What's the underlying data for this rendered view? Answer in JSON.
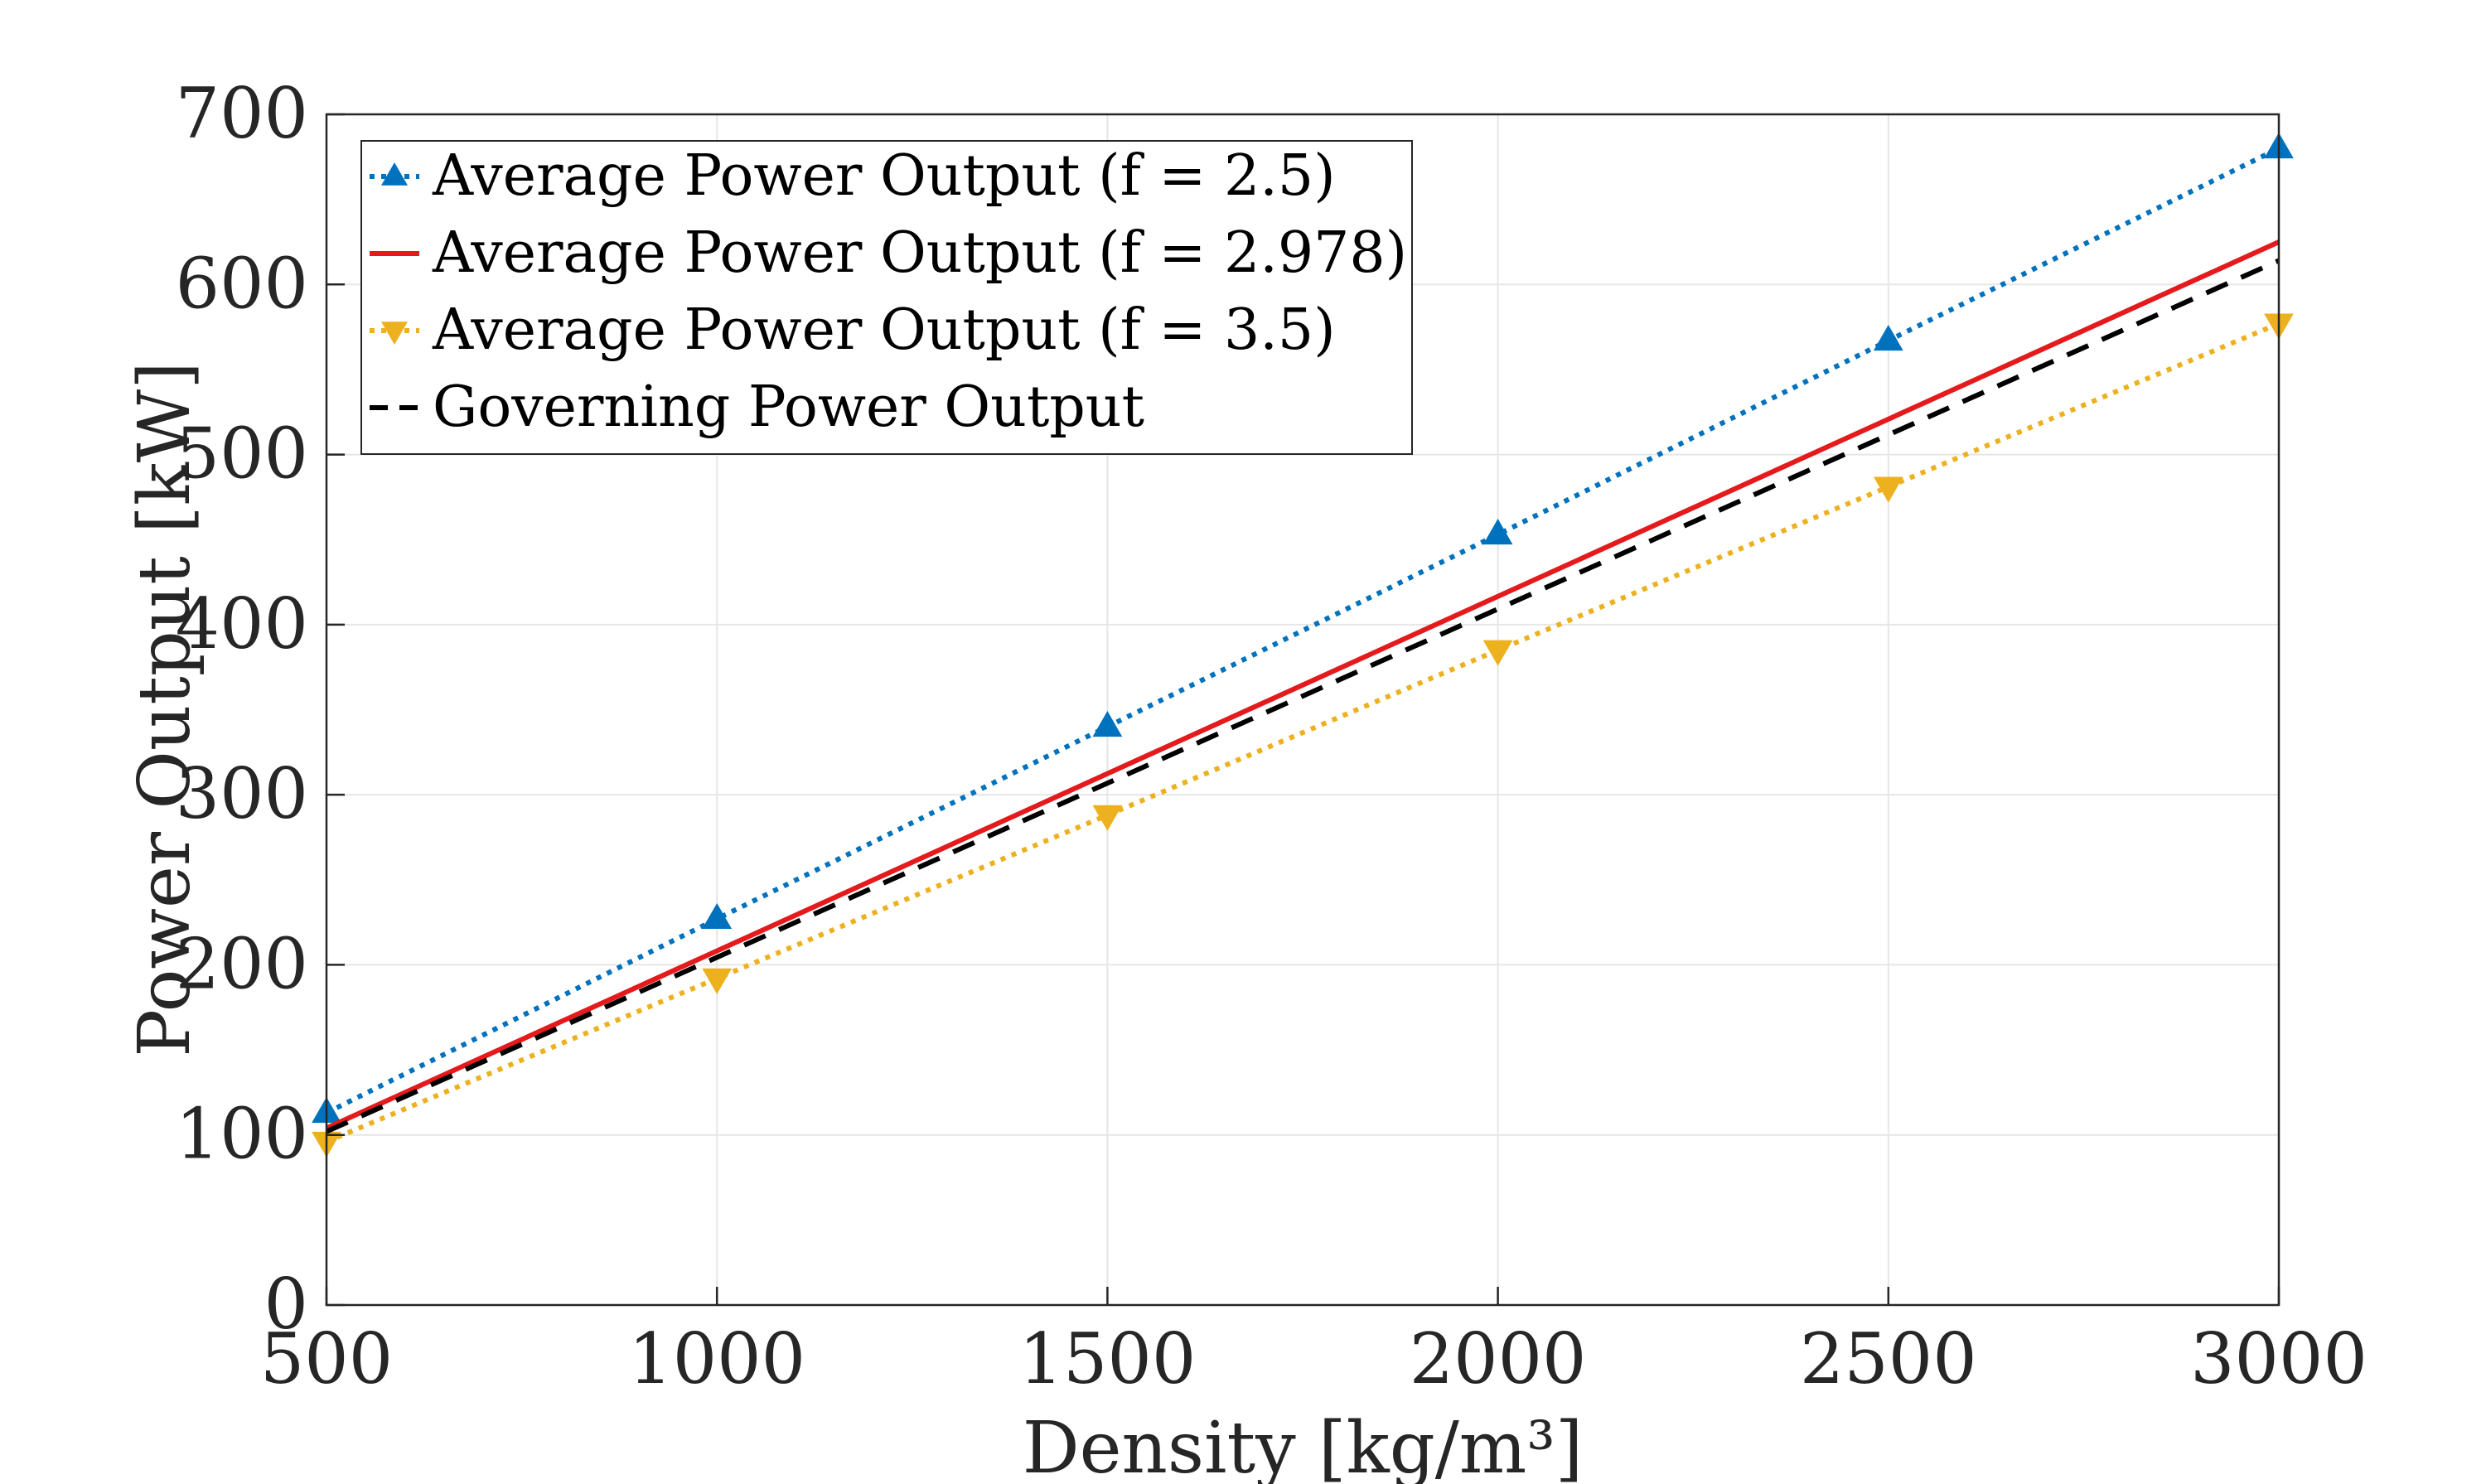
{
  "chart_data": {
    "type": "line",
    "xlabel": "Density [kg/m³]",
    "ylabel": "Power Output [kW]",
    "xlim": [
      500,
      3000
    ],
    "ylim": [
      0,
      700
    ],
    "xticks": [
      500,
      1000,
      1500,
      2000,
      2500,
      3000
    ],
    "yticks": [
      0,
      100,
      200,
      300,
      400,
      500,
      600,
      700
    ],
    "grid": true,
    "legend_position": "top-left",
    "series": [
      {
        "name": "Average Power Output (f = 2.5)",
        "color": "#0072BD",
        "line_style": "dotted",
        "marker": "triangle-up",
        "x": [
          500,
          1000,
          1500,
          2000,
          2500,
          3000
        ],
        "y": [
          113,
          227,
          340,
          453,
          567,
          680
        ]
      },
      {
        "name": "Average Power Output (f = 2.978)",
        "color": "#E41A1C",
        "line_style": "solid",
        "marker": "none",
        "x": [
          500,
          3000
        ],
        "y": [
          104,
          625
        ]
      },
      {
        "name": "Average Power Output (f = 3.5)",
        "color": "#EDB120",
        "line_style": "dotted",
        "marker": "triangle-down",
        "x": [
          500,
          1000,
          1500,
          2000,
          2500,
          3000
        ],
        "y": [
          96,
          192,
          288,
          385,
          481,
          577
        ]
      },
      {
        "name": "Governing Power Output",
        "color": "#000000",
        "line_style": "dashed",
        "marker": "none",
        "x": [
          500,
          3000
        ],
        "y": [
          102,
          614
        ]
      }
    ]
  }
}
